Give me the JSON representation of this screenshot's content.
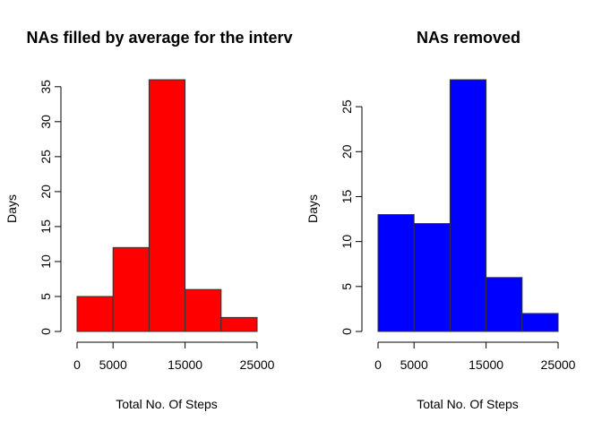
{
  "chart_data": [
    {
      "type": "bar",
      "title": "NAs filled by average for the interv",
      "xlabel": "Total No. Of Steps",
      "ylabel": "Days",
      "bar_color": "#ff0000",
      "bins": [
        [
          0,
          5000
        ],
        [
          5000,
          10000
        ],
        [
          10000,
          15000
        ],
        [
          15000,
          20000
        ],
        [
          20000,
          25000
        ]
      ],
      "values": [
        5,
        12,
        36,
        6,
        2
      ],
      "xlim": [
        0,
        25000
      ],
      "ylim": [
        0,
        36
      ],
      "x_ticks": [
        0,
        5000,
        15000,
        25000
      ],
      "x_tick_labels": [
        "0",
        "5000",
        "15000",
        "25000"
      ],
      "y_ticks": [
        0,
        5,
        10,
        15,
        20,
        25,
        30,
        35
      ],
      "y_tick_labels": [
        "0",
        "5",
        "10",
        "15",
        "20",
        "25",
        "30",
        "35"
      ],
      "grid": false,
      "legend": "none"
    },
    {
      "type": "bar",
      "title": "NAs removed",
      "xlabel": "Total No. Of Steps",
      "ylabel": "Days",
      "bar_color": "#0000ff",
      "bins": [
        [
          0,
          5000
        ],
        [
          5000,
          10000
        ],
        [
          10000,
          15000
        ],
        [
          15000,
          20000
        ],
        [
          20000,
          25000
        ]
      ],
      "values": [
        13,
        12,
        28,
        6,
        2
      ],
      "xlim": [
        0,
        25000
      ],
      "ylim": [
        0,
        28
      ],
      "x_ticks": [
        0,
        5000,
        15000,
        25000
      ],
      "x_tick_labels": [
        "0",
        "5000",
        "15000",
        "25000"
      ],
      "y_ticks": [
        0,
        5,
        10,
        15,
        20,
        25
      ],
      "y_tick_labels": [
        "0",
        "5",
        "10",
        "15",
        "20",
        "25"
      ],
      "grid": false,
      "legend": "none"
    }
  ]
}
